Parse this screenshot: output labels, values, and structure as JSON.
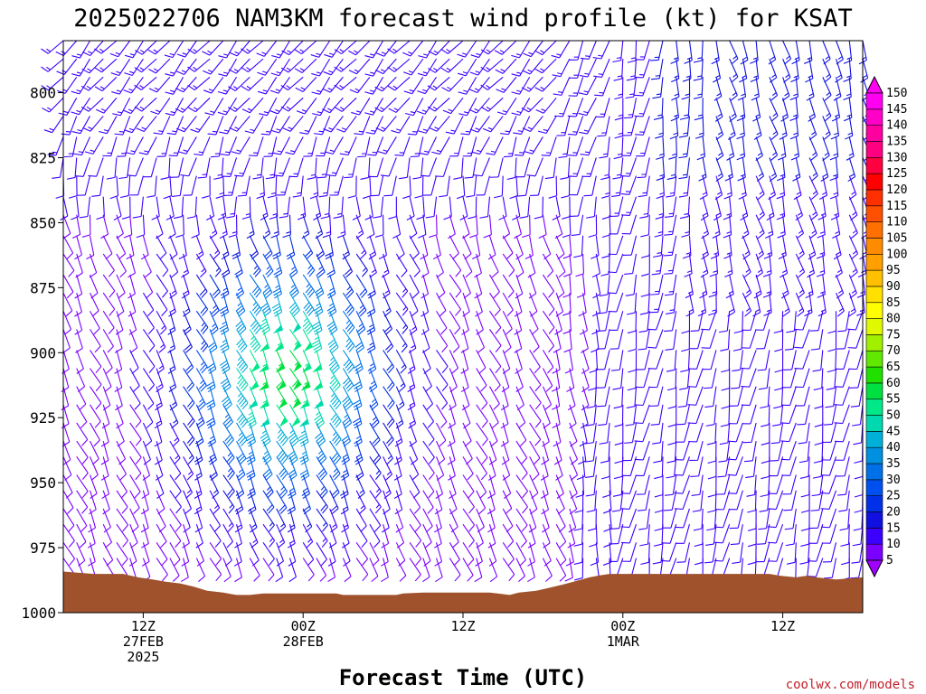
{
  "chart_data": {
    "type": "wind-barb",
    "title": "2025022706 NAM3KM forecast wind profile (kt) for KSAT",
    "xlabel": "Forecast Time (UTC)",
    "ylabel": "",
    "y_axis": {
      "reversed": true,
      "range": [
        1000,
        780
      ],
      "ticks": [
        800,
        825,
        850,
        875,
        900,
        925,
        950,
        975,
        1000
      ]
    },
    "x_axis": {
      "range_hours": [
        0,
        60
      ],
      "ticks": [
        {
          "hour": 6,
          "lines": [
            "12Z",
            "27FEB",
            "2025"
          ]
        },
        {
          "hour": 18,
          "lines": [
            "00Z",
            "28FEB"
          ]
        },
        {
          "hour": 30,
          "lines": [
            "12Z"
          ]
        },
        {
          "hour": 42,
          "lines": [
            "00Z",
            "1MAR"
          ]
        },
        {
          "hour": 54,
          "lines": [
            "12Z"
          ]
        }
      ]
    },
    "colorbar": {
      "levels": [
        5,
        10,
        15,
        20,
        25,
        30,
        35,
        40,
        45,
        50,
        55,
        60,
        65,
        70,
        75,
        80,
        85,
        90,
        95,
        100,
        105,
        110,
        115,
        120,
        125,
        130,
        135,
        140,
        145,
        150
      ],
      "colors": [
        "#a000ff",
        "#7a00ff",
        "#3c00ff",
        "#1010e0",
        "#0030e8",
        "#0050f0",
        "#0070e8",
        "#0090e0",
        "#00b0d8",
        "#00d8b0",
        "#00e888",
        "#00e040",
        "#20e000",
        "#60e800",
        "#a0f000",
        "#e0f800",
        "#ffff00",
        "#ffe000",
        "#ffc000",
        "#ffa000",
        "#ff8c00",
        "#ff7000",
        "#ff5000",
        "#ff3000",
        "#ff0000",
        "#ff0040",
        "#ff0080",
        "#ff00a0",
        "#ff00c8",
        "#ff00f0"
      ]
    },
    "terrain_color": "#a0522d",
    "terrain_surface_pressure": [
      [
        0.0,
        984.2
      ],
      [
        2.3,
        985.1
      ],
      [
        4.5,
        985.1
      ],
      [
        5.6,
        986.4
      ],
      [
        6.7,
        987.2
      ],
      [
        7.7,
        988.1
      ],
      [
        8.8,
        988.8
      ],
      [
        9.8,
        990.0
      ],
      [
        10.8,
        991.6
      ],
      [
        12.0,
        992.3
      ],
      [
        13.0,
        993.2
      ],
      [
        14.0,
        993.2
      ],
      [
        15.0,
        992.6
      ],
      [
        20.0,
        992.6
      ],
      [
        20.5,
        992.6
      ],
      [
        21.0,
        993.2
      ],
      [
        25.0,
        993.2
      ],
      [
        25.5,
        992.6
      ],
      [
        27.0,
        992.3
      ],
      [
        32.0,
        992.3
      ],
      [
        32.6,
        992.6
      ],
      [
        33.5,
        993.2
      ],
      [
        34.2,
        992.3
      ],
      [
        35.5,
        991.6
      ],
      [
        36.5,
        990.4
      ],
      [
        37.5,
        989.2
      ],
      [
        38.5,
        987.8
      ],
      [
        39.5,
        986.4
      ],
      [
        40.2,
        985.7
      ],
      [
        41.0,
        985.1
      ],
      [
        42.0,
        985.1
      ],
      [
        48.0,
        985.1
      ],
      [
        53.0,
        985.1
      ],
      [
        53.8,
        985.8
      ],
      [
        55.0,
        986.4
      ],
      [
        55.8,
        985.8
      ],
      [
        56.5,
        986.4
      ],
      [
        58.0,
        987.2
      ],
      [
        60.0,
        986.4
      ]
    ],
    "wind_field": {
      "units": "kt",
      "columns_hours_every": 1,
      "levels_hpa": [
        780,
        787,
        794,
        802,
        809,
        817,
        825,
        832,
        840,
        847,
        855,
        862,
        870,
        877,
        884,
        891,
        899,
        906,
        913,
        920,
        927,
        934,
        940,
        947,
        953,
        960,
        966,
        973,
        979
      ],
      "jet": {
        "center_hour": 16.5,
        "center_hpa": 904,
        "peak_speed_kt": 50,
        "direction_from_deg": 155
      },
      "upper_flow": {
        "direction_from_deg": 220,
        "speed_kt": [
          8,
          14
        ]
      },
      "late_period": {
        "direction_from_deg": 190,
        "speed_kt": [
          5,
          18
        ]
      }
    }
  },
  "credit": "coolwx.com/models"
}
